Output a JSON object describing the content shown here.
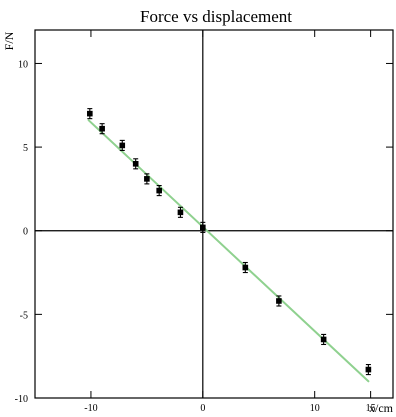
{
  "chart_data": {
    "type": "scatter",
    "title": "Force vs displacement",
    "xlabel": "x/cm",
    "ylabel": "F/N",
    "xlim": [
      -15,
      17
    ],
    "ylim": [
      -10,
      12
    ],
    "grid": false,
    "legend": "none",
    "x_ticks": [
      -10,
      0,
      10,
      15
    ],
    "y_ticks": [
      10,
      5,
      0,
      -5,
      -10
    ],
    "x_tick_labels": [
      "-10",
      "0",
      "10",
      "15"
    ],
    "y_tick_labels": [
      "10",
      "5",
      "0",
      "-5",
      "-10"
    ],
    "points": [
      {
        "x": -10.1,
        "y": 7.0,
        "err": 0.3
      },
      {
        "x": -9.0,
        "y": 6.1,
        "err": 0.3
      },
      {
        "x": -7.2,
        "y": 5.1,
        "err": 0.3
      },
      {
        "x": -6.0,
        "y": 4.0,
        "err": 0.3
      },
      {
        "x": -5.0,
        "y": 3.1,
        "err": 0.3
      },
      {
        "x": -3.9,
        "y": 2.4,
        "err": 0.3
      },
      {
        "x": -2.0,
        "y": 1.1,
        "err": 0.3
      },
      {
        "x": 0.0,
        "y": 0.2,
        "err": 0.3
      },
      {
        "x": 3.8,
        "y": -2.2,
        "err": 0.3
      },
      {
        "x": 6.8,
        "y": -4.2,
        "err": 0.3
      },
      {
        "x": 10.8,
        "y": -6.5,
        "err": 0.3
      },
      {
        "x": 14.8,
        "y": -8.3,
        "err": 0.3
      }
    ],
    "fit_line": [
      {
        "x": -10.2,
        "y": 6.6
      },
      {
        "x": 14.8,
        "y": -9.0
      }
    ],
    "colors": {
      "points": "#000000",
      "fit": "#8fd18f"
    }
  }
}
